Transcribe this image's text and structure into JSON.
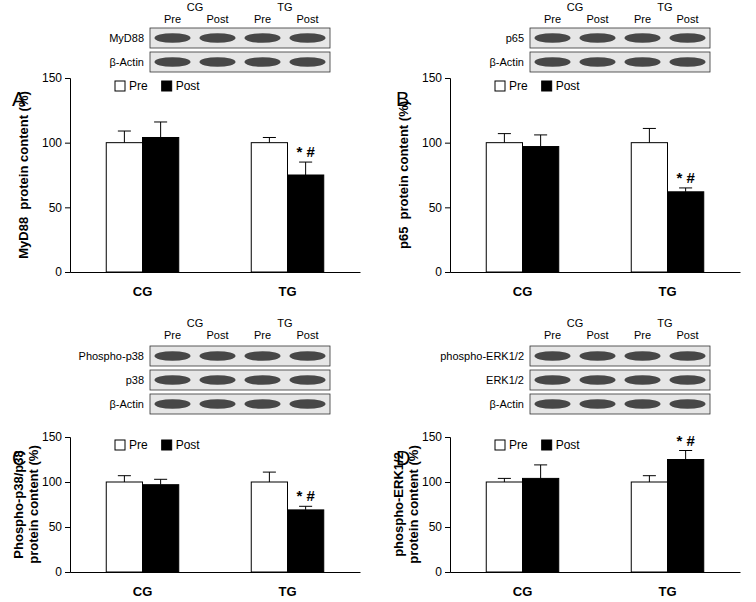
{
  "chart_data": [
    {
      "type": "bar",
      "panel_label": "A",
      "y_label": [
        "MyD88  protein content (%)"
      ],
      "blot": {
        "groups": [
          "CG",
          "TG"
        ],
        "lanes": [
          "Pre",
          "Post",
          "Pre",
          "Post"
        ],
        "rows": [
          "MyD88",
          "β-Actin"
        ]
      },
      "categories": [
        "CG",
        "TG"
      ],
      "series": [
        {
          "name": "Pre",
          "color": "#ffffff",
          "values": [
            100,
            100
          ],
          "errors": [
            9,
            4
          ]
        },
        {
          "name": "Post",
          "color": "#000000",
          "values": [
            104,
            75
          ],
          "errors": [
            12,
            10
          ],
          "significance": [
            null,
            "* #"
          ]
        }
      ],
      "ylim": [
        0,
        150
      ],
      "yticks": [
        0,
        50,
        100,
        150
      ],
      "grid": false,
      "legend": "top-left"
    },
    {
      "type": "bar",
      "panel_label": "B",
      "y_label": [
        "p65  protein content (%)"
      ],
      "blot": {
        "groups": [
          "CG",
          "TG"
        ],
        "lanes": [
          "Pre",
          "Post",
          "Pre",
          "Post"
        ],
        "rows": [
          "p65",
          "β-Actin"
        ]
      },
      "categories": [
        "CG",
        "TG"
      ],
      "series": [
        {
          "name": "Pre",
          "color": "#ffffff",
          "values": [
            100,
            100
          ],
          "errors": [
            7,
            11
          ]
        },
        {
          "name": "Post",
          "color": "#000000",
          "values": [
            97,
            62
          ],
          "errors": [
            9,
            3
          ],
          "significance": [
            null,
            "* #"
          ]
        }
      ],
      "ylim": [
        0,
        150
      ],
      "yticks": [
        0,
        50,
        100,
        150
      ],
      "grid": false,
      "legend": "top-left"
    },
    {
      "type": "bar",
      "panel_label": "C",
      "y_label": [
        "Phospho-p38/p38",
        "protein content (%)"
      ],
      "blot": {
        "groups": [
          "CG",
          "TG"
        ],
        "lanes": [
          "Pre",
          "Post",
          "Pre",
          "Post"
        ],
        "rows": [
          "Phospho-p38",
          "p38",
          "β-Actin"
        ]
      },
      "categories": [
        "CG",
        "TG"
      ],
      "series": [
        {
          "name": "Pre",
          "color": "#ffffff",
          "values": [
            100,
            100
          ],
          "errors": [
            7,
            11
          ]
        },
        {
          "name": "Post",
          "color": "#000000",
          "values": [
            97,
            69
          ],
          "errors": [
            6,
            4
          ],
          "significance": [
            null,
            "* #"
          ]
        }
      ],
      "ylim": [
        0,
        150
      ],
      "yticks": [
        0,
        50,
        100,
        150
      ],
      "grid": false,
      "legend": "top-left"
    },
    {
      "type": "bar",
      "panel_label": "D",
      "y_label": [
        "phospho-ERK1/2",
        "protein content (%)"
      ],
      "blot": {
        "groups": [
          "CG",
          "TG"
        ],
        "lanes": [
          "Pre",
          "Post",
          "Pre",
          "Post"
        ],
        "rows": [
          "phospho-ERK1/2",
          "ERK1/2",
          "β-Actin"
        ]
      },
      "categories": [
        "CG",
        "TG"
      ],
      "series": [
        {
          "name": "Pre",
          "color": "#ffffff",
          "values": [
            100,
            100
          ],
          "errors": [
            4,
            7
          ]
        },
        {
          "name": "Post",
          "color": "#000000",
          "values": [
            104,
            125
          ],
          "errors": [
            15,
            10
          ],
          "significance": [
            null,
            "* #"
          ]
        }
      ],
      "ylim": [
        0,
        150
      ],
      "yticks": [
        0,
        50,
        100,
        150
      ],
      "grid": false,
      "legend": "top-left"
    }
  ]
}
